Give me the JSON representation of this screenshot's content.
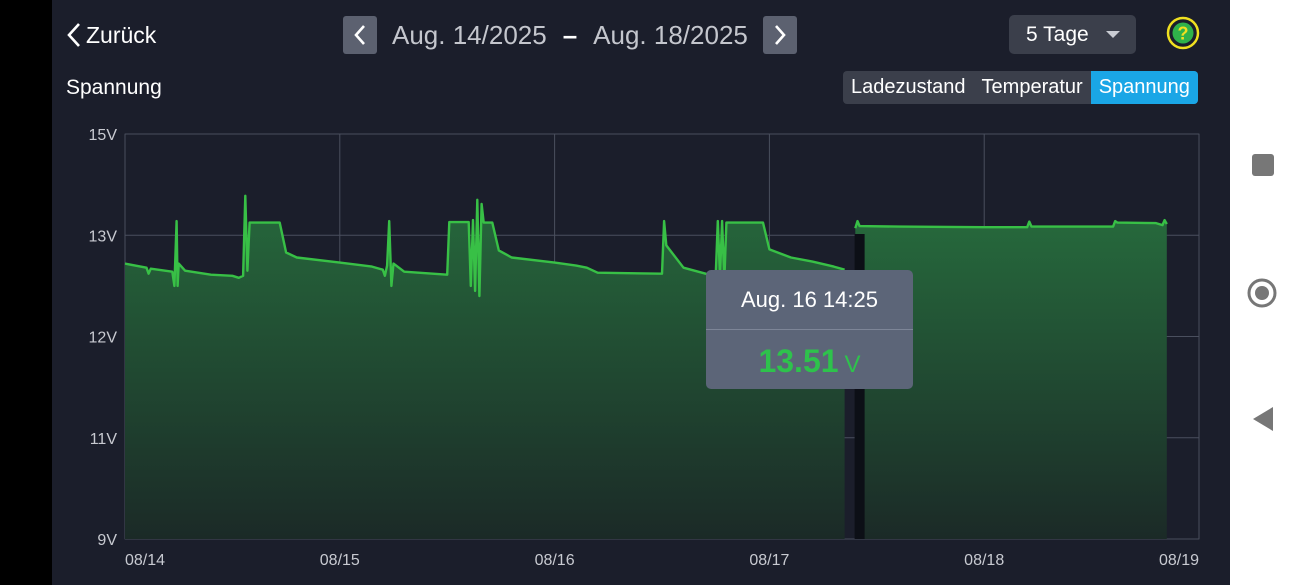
{
  "header": {
    "back_label": "Zurück",
    "date_start": "Aug. 14/2025",
    "date_separator": "–",
    "date_end": "Aug. 18/2025",
    "range_selected": "5 Tage",
    "help_glyph": "?"
  },
  "chart_title": "Spannung",
  "tabs": [
    {
      "label": "Ladezustand",
      "active": false
    },
    {
      "label": "Temperatur",
      "active": false
    },
    {
      "label": "Spannung",
      "active": true
    }
  ],
  "tooltip": {
    "time": "Aug. 16 14:25",
    "value": "13.51",
    "unit": "V"
  },
  "colors": {
    "line": "#38c046",
    "accent": "#1aa6e6",
    "help": "#f0e020"
  },
  "chart_data": {
    "type": "area",
    "title": "Spannung",
    "ylabel": "V",
    "y_ticks": [
      {
        "value": 9,
        "label": "9V"
      },
      {
        "value": 11,
        "label": "11V"
      },
      {
        "value": 12,
        "label": "12V"
      },
      {
        "value": 13,
        "label": "13V"
      },
      {
        "value": 15,
        "label": "15V"
      }
    ],
    "x_ticks": [
      {
        "value": 0,
        "label": "08/14"
      },
      {
        "value": 1,
        "label": "08/15"
      },
      {
        "value": 2,
        "label": "08/16"
      },
      {
        "value": 3,
        "label": "08/17"
      },
      {
        "value": 4,
        "label": "08/18"
      },
      {
        "value": 5,
        "label": "08/19"
      }
    ],
    "xlim": [
      0,
      5
    ],
    "ylim_display": [
      9,
      15
    ],
    "series": [
      {
        "name": "Spannung",
        "segments": [
          [
            [
              0,
              12.72
            ],
            [
              0.1,
              12.68
            ],
            [
              0.11,
              12.62
            ],
            [
              0.12,
              12.67
            ],
            [
              0.22,
              12.64
            ],
            [
              0.23,
              12.5
            ],
            [
              0.24,
              13.28
            ],
            [
              0.245,
              12.5
            ],
            [
              0.25,
              12.72
            ],
            [
              0.28,
              12.65
            ],
            [
              0.4,
              12.61
            ],
            [
              0.5,
              12.6
            ],
            [
              0.53,
              12.58
            ],
            [
              0.55,
              12.6
            ],
            [
              0.56,
              13.78
            ],
            [
              0.57,
              12.65
            ],
            [
              0.58,
              13.25
            ],
            [
              0.72,
              13.25
            ],
            [
              0.75,
              12.83
            ],
            [
              0.8,
              12.78
            ],
            [
              1.0,
              12.73
            ],
            [
              1.15,
              12.69
            ],
            [
              1.2,
              12.66
            ],
            [
              1.21,
              12.6
            ],
            [
              1.22,
              12.7
            ],
            [
              1.23,
              13.28
            ],
            [
              1.24,
              12.5
            ],
            [
              1.25,
              12.72
            ],
            [
              1.3,
              12.64
            ],
            [
              1.5,
              12.61
            ],
            [
              1.51,
              13.26
            ],
            [
              1.6,
              13.26
            ],
            [
              1.61,
              12.5
            ],
            [
              1.62,
              13.3
            ],
            [
              1.63,
              12.45
            ],
            [
              1.64,
              13.7
            ],
            [
              1.65,
              12.4
            ],
            [
              1.66,
              13.62
            ],
            [
              1.67,
              13.25
            ],
            [
              1.71,
              13.25
            ],
            [
              1.74,
              12.85
            ],
            [
              1.8,
              12.78
            ],
            [
              2.0,
              12.73
            ],
            [
              2.1,
              12.7
            ],
            [
              2.15,
              12.68
            ],
            [
              2.2,
              12.63
            ],
            [
              2.5,
              12.62
            ],
            [
              2.51,
              13.28
            ],
            [
              2.52,
              12.9
            ],
            [
              2.6,
              12.68
            ],
            [
              2.72,
              12.61
            ],
            [
              2.75,
              12.6
            ],
            [
              2.76,
              13.28
            ],
            [
              2.77,
              12.6
            ],
            [
              2.78,
              13.28
            ],
            [
              2.79,
              12.55
            ],
            [
              2.8,
              13.25
            ],
            [
              2.97,
              13.25
            ],
            [
              3.0,
              12.86
            ],
            [
              3.1,
              12.78
            ],
            [
              3.2,
              12.74
            ],
            [
              3.3,
              12.69
            ],
            [
              3.35,
              12.66
            ]
          ],
          [
            [
              3.4,
              13.14
            ],
            [
              3.41,
              13.28
            ],
            [
              3.42,
              13.18
            ],
            [
              3.6,
              13.17
            ],
            [
              4.0,
              13.16
            ],
            [
              4.2,
              13.16
            ],
            [
              4.21,
              13.27
            ],
            [
              4.22,
              13.17
            ],
            [
              4.4,
              13.17
            ],
            [
              4.6,
              13.17
            ],
            [
              4.61,
              13.28
            ],
            [
              4.62,
              13.25
            ],
            [
              4.8,
              13.24
            ],
            [
              4.83,
              13.2
            ],
            [
              4.84,
              13.3
            ],
            [
              4.85,
              13.22
            ]
          ]
        ]
      }
    ],
    "tooltip_x": 3.42
  }
}
